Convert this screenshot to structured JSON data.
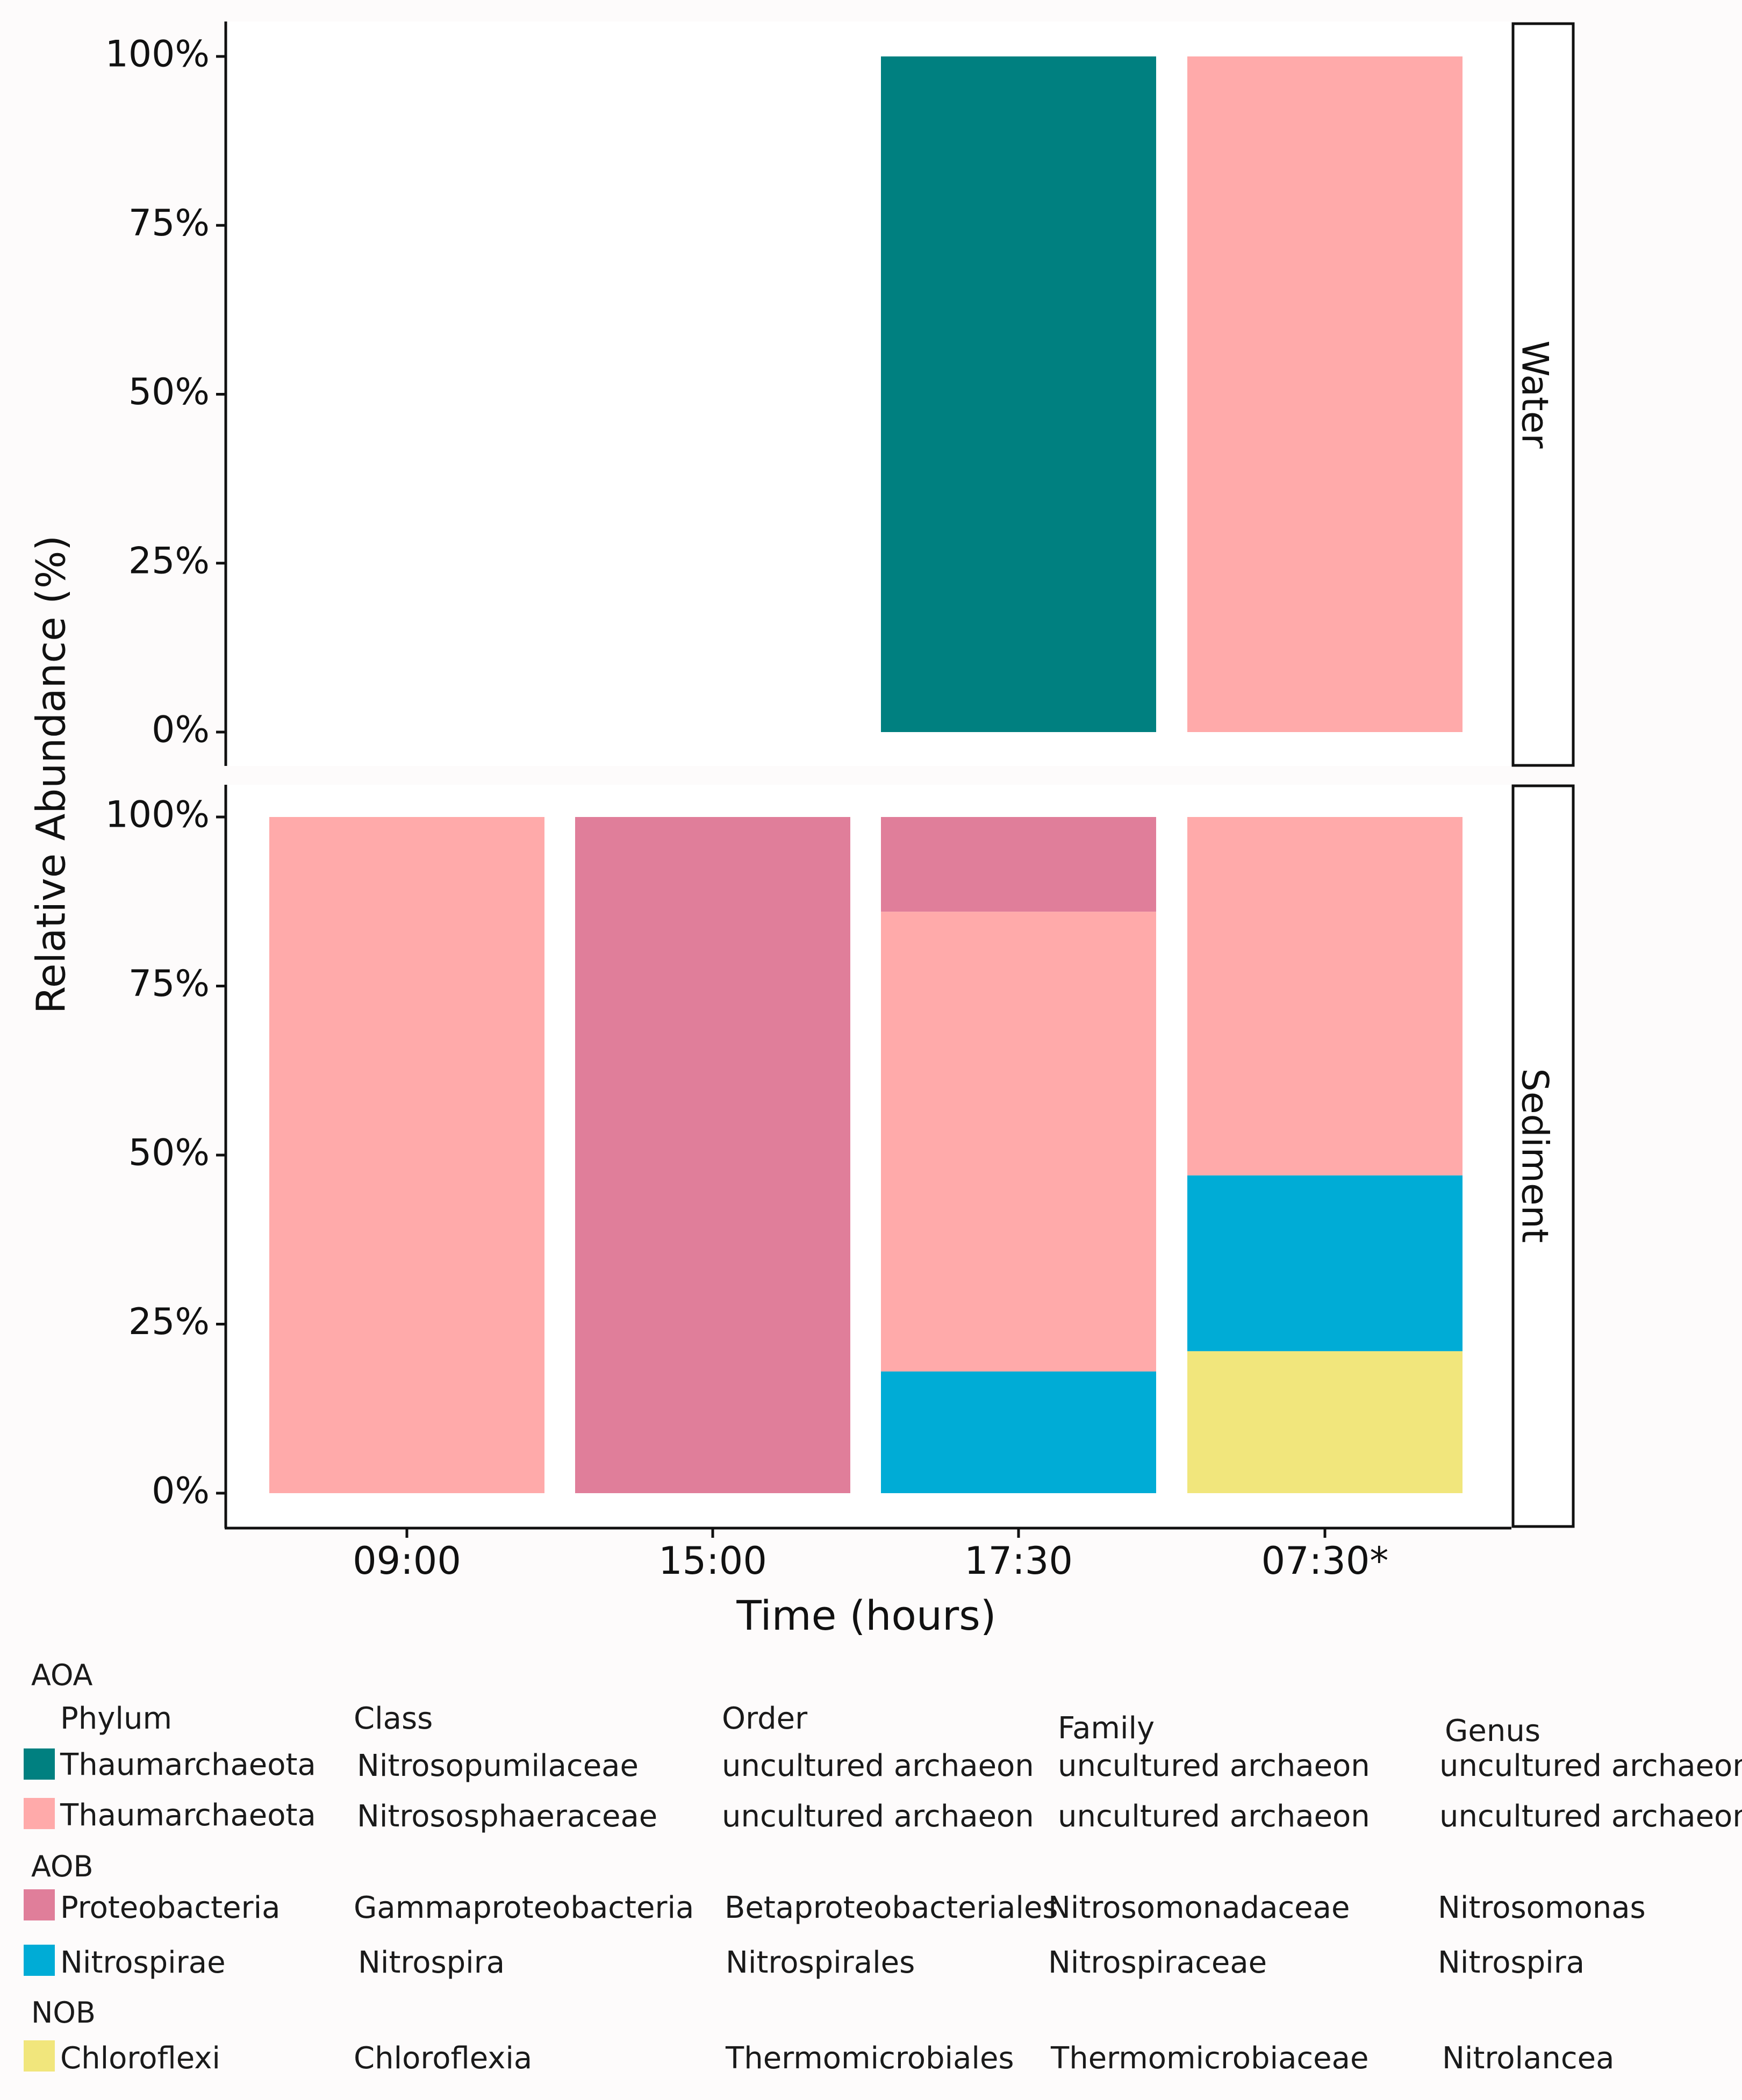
{
  "chart_data": {
    "type": "bar",
    "stacked": true,
    "ylabel": "Relative Abundance (%)",
    "xlabel": "Time (hours)",
    "categories": [
      "09:00",
      "15:00",
      "17:30",
      "07:30*"
    ],
    "ylim": [
      0,
      100
    ],
    "yticks": [
      "0%",
      "25%",
      "50%",
      "75%",
      "100%"
    ],
    "facets": [
      {
        "name": "Water",
        "bars": [
          {
            "category": "09:00",
            "segments": []
          },
          {
            "category": "15:00",
            "segments": []
          },
          {
            "category": "17:30",
            "segments": [
              {
                "taxon": "Nitrosopumilaceae",
                "value": 100
              }
            ]
          },
          {
            "category": "07:30*",
            "segments": [
              {
                "taxon": "Nitrososphaeraceae",
                "value": 100
              }
            ]
          }
        ]
      },
      {
        "name": "Sediment",
        "bars": [
          {
            "category": "09:00",
            "segments": [
              {
                "taxon": "Nitrososphaeraceae",
                "value": 100
              }
            ]
          },
          {
            "category": "15:00",
            "segments": [
              {
                "taxon": "Proteobacteria",
                "value": 100
              }
            ]
          },
          {
            "category": "17:30",
            "segments": [
              {
                "taxon": "Nitrospirae",
                "value": 18
              },
              {
                "taxon": "Nitrososphaeraceae",
                "value": 68
              },
              {
                "taxon": "Proteobacteria",
                "value": 14
              }
            ]
          },
          {
            "category": "07:30*",
            "segments": [
              {
                "taxon": "Chloroflexi",
                "value": 21
              },
              {
                "taxon": "Nitrospirae",
                "value": 26
              },
              {
                "taxon": "Nitrososphaeraceae",
                "value": 53
              }
            ]
          }
        ]
      }
    ],
    "colors": {
      "Nitrosopumilaceae": "#008080",
      "Nitrososphaeraceae": "#ffaaaa",
      "Proteobacteria": "#e07e9a",
      "Nitrospirae": "#00acd6",
      "Chloroflexi": "#f1e67c"
    }
  },
  "legend": {
    "headers": [
      "Phylum",
      "Class",
      "Order",
      "Family",
      "Genus"
    ],
    "groups": {
      "aoa": "AOA",
      "aob": "AOB",
      "nob": "NOB"
    },
    "rows": [
      {
        "key": "Nitrosopumilaceae",
        "phylum": "Thaumarchaeota",
        "class": "Nitrosopumilaceae",
        "order": "uncultured archaeon",
        "family": "uncultured archaeon",
        "genus": "uncultured archaeon"
      },
      {
        "key": "Nitrososphaeraceae",
        "phylum": "Thaumarchaeota",
        "class": "Nitrososphaeraceae",
        "order": "uncultured archaeon",
        "family": "uncultured archaeon",
        "genus": "uncultured archaeon"
      },
      {
        "key": "Proteobacteria",
        "phylum": "Proteobacteria",
        "class": "Gammaproteobacteria",
        "order": "Betaproteobacteriales",
        "family": "Nitrosomonadaceae",
        "genus": "Nitrosomonas"
      },
      {
        "key": "Nitrospirae",
        "phylum": "Nitrospirae",
        "class": "Nitrospira",
        "order": "Nitrospirales",
        "family": "Nitrospiraceae",
        "genus": "Nitrospira"
      },
      {
        "key": "Chloroflexi",
        "phylum": "Chloroflexi",
        "class": "Chloroflexia",
        "order": "Thermomicrobiales",
        "family": "Thermomicrobiaceae",
        "genus": "Nitrolancea"
      }
    ]
  }
}
